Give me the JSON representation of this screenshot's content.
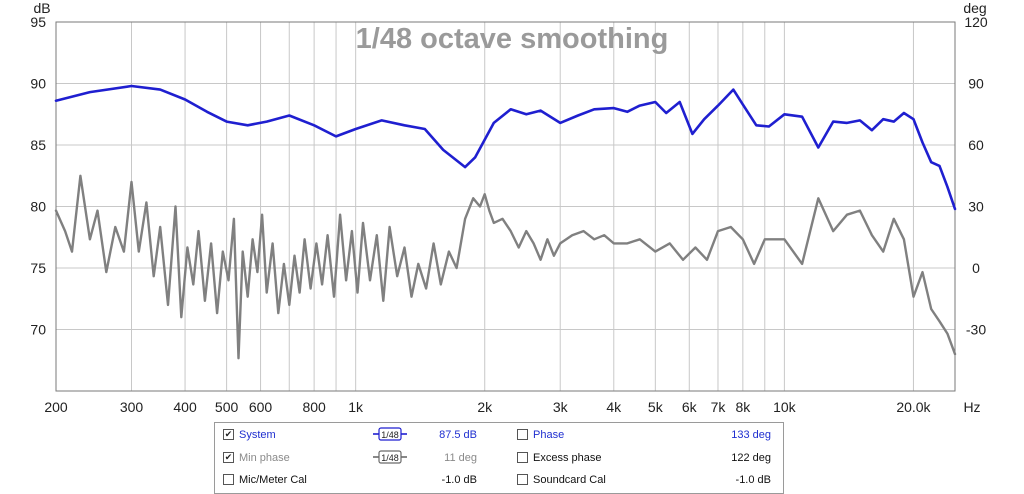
{
  "chart_data": {
    "type": "line",
    "title": "1/48 octave smoothing",
    "x_unit": "Hz",
    "x_scale": "log",
    "xlim": [
      200,
      25000
    ],
    "x_ticks": [
      200,
      300,
      400,
      500,
      600,
      800,
      1000,
      2000,
      3000,
      4000,
      5000,
      6000,
      7000,
      8000,
      10000,
      20000
    ],
    "x_tick_labels": [
      "200",
      "300",
      "400",
      "500",
      "600",
      "800",
      "1k",
      "2k",
      "3k",
      "4k",
      "5k",
      "6k",
      "7k",
      "8k",
      "10k",
      "20.0k"
    ],
    "ylabel_left": "dB",
    "ylim_left": [
      65,
      95
    ],
    "y_ticks_left": [
      95,
      90,
      85,
      80,
      75,
      70
    ],
    "ylabel_right": "deg",
    "ylim_right": [
      -60,
      120
    ],
    "y_ticks_right": [
      120,
      90,
      60,
      30,
      0,
      -30
    ],
    "grid": true,
    "series": [
      {
        "name": "System",
        "axis": "left",
        "color": "#1f1fd0",
        "x": [
          200,
          240,
          300,
          350,
          400,
          450,
          500,
          560,
          620,
          700,
          800,
          900,
          1000,
          1150,
          1300,
          1450,
          1600,
          1800,
          1900,
          2100,
          2300,
          2500,
          2700,
          3000,
          3300,
          3600,
          4000,
          4300,
          4600,
          5000,
          5300,
          5700,
          6100,
          6500,
          7000,
          7600,
          8000,
          8600,
          9200,
          10000,
          11000,
          12000,
          13000,
          14000,
          15000,
          16000,
          17000,
          18000,
          19000,
          20000,
          21000,
          22000,
          23000,
          24000,
          25000
        ],
        "y": [
          88.6,
          89.3,
          89.8,
          89.5,
          88.7,
          87.7,
          86.9,
          86.6,
          86.9,
          87.4,
          86.6,
          85.7,
          86.3,
          87.0,
          86.6,
          86.3,
          84.6,
          83.2,
          84.0,
          86.8,
          87.9,
          87.5,
          87.8,
          86.8,
          87.4,
          87.9,
          88.0,
          87.7,
          88.2,
          88.5,
          87.6,
          88.5,
          85.9,
          87.1,
          88.2,
          89.5,
          88.3,
          86.6,
          86.5,
          87.5,
          87.3,
          84.8,
          86.9,
          86.8,
          87.0,
          86.2,
          87.1,
          86.9,
          87.6,
          87.1,
          85.2,
          83.6,
          83.3,
          81.6,
          79.8
        ]
      },
      {
        "name": "Phase",
        "axis": "right",
        "color": "#808080",
        "x": [
          200,
          210,
          218,
          228,
          240,
          250,
          262,
          275,
          288,
          300,
          312,
          325,
          338,
          350,
          365,
          380,
          392,
          405,
          418,
          430,
          445,
          460,
          475,
          490,
          505,
          520,
          533,
          545,
          560,
          575,
          590,
          605,
          620,
          640,
          660,
          680,
          700,
          720,
          740,
          760,
          785,
          810,
          835,
          860,
          890,
          920,
          950,
          980,
          1010,
          1040,
          1080,
          1120,
          1160,
          1200,
          1250,
          1300,
          1350,
          1400,
          1460,
          1520,
          1580,
          1650,
          1720,
          1800,
          1880,
          1950,
          2000,
          2050,
          2100,
          2200,
          2300,
          2400,
          2500,
          2600,
          2700,
          2800,
          2900,
          3000,
          3200,
          3400,
          3600,
          3800,
          4000,
          4300,
          4600,
          5000,
          5400,
          5800,
          6200,
          6600,
          7000,
          7500,
          8000,
          8500,
          9000,
          10000,
          11000,
          12000,
          13000,
          14000,
          15000,
          16000,
          17000,
          18000,
          19000,
          20000,
          21000,
          22000,
          23000,
          24000,
          25000
        ],
        "y": [
          28,
          18,
          8,
          45,
          14,
          28,
          -2,
          20,
          8,
          42,
          8,
          32,
          -4,
          20,
          -18,
          30,
          -24,
          10,
          -8,
          18,
          -16,
          12,
          -22,
          8,
          -6,
          24,
          -44,
          8,
          -14,
          14,
          -2,
          26,
          -12,
          12,
          -22,
          2,
          -18,
          6,
          -12,
          14,
          -10,
          12,
          -8,
          16,
          -14,
          26,
          -6,
          18,
          -12,
          22,
          -6,
          16,
          -16,
          20,
          -4,
          10,
          -14,
          2,
          -10,
          12,
          -8,
          8,
          0,
          24,
          34,
          30,
          36,
          28,
          22,
          24,
          18,
          10,
          18,
          12,
          4,
          14,
          6,
          12,
          16,
          18,
          14,
          16,
          12,
          12,
          14,
          8,
          12,
          4,
          10,
          4,
          18,
          20,
          14,
          2,
          14,
          14,
          2,
          34,
          18,
          26,
          28,
          16,
          8,
          24,
          14,
          -14,
          -2,
          -20,
          -26,
          -32,
          -42
        ]
      }
    ],
    "legend": {
      "position": "bottom",
      "rows": [
        {
          "left": {
            "checked": true,
            "label": "System",
            "smoothing": "1/48",
            "value": "87.5 dB",
            "style": "blue"
          },
          "right": {
            "checked": false,
            "label": "Phase",
            "value": "133 deg",
            "style": "blue"
          }
        },
        {
          "left": {
            "checked": true,
            "label": "Min phase",
            "smoothing": "1/48",
            "value": "11 deg",
            "style": "grey"
          },
          "right": {
            "checked": false,
            "label": "Excess phase",
            "value": "122 deg",
            "style": "dark"
          }
        },
        {
          "left": {
            "checked": false,
            "label": "Mic/Meter Cal",
            "value": "-1.0 dB",
            "style": "dark"
          },
          "right": {
            "checked": false,
            "label": "Soundcard Cal",
            "value": "-1.0 dB",
            "style": "dark"
          }
        }
      ]
    }
  }
}
